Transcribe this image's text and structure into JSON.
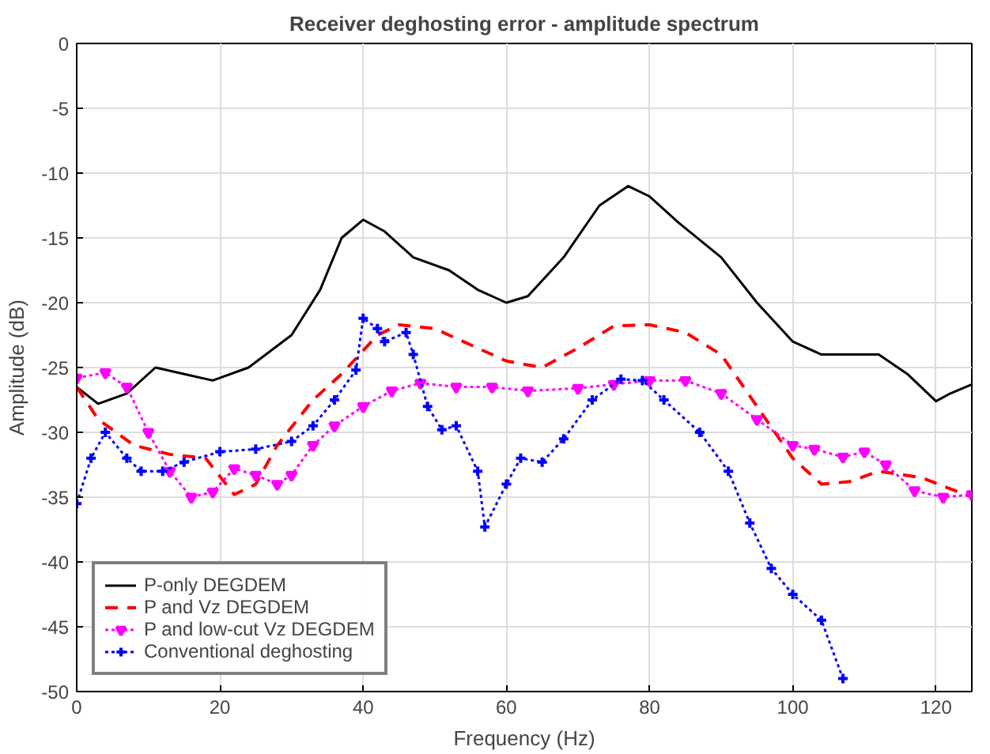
{
  "chart_data": {
    "type": "line",
    "title": "Receiver deghosting error - amplitude spectrum",
    "xlabel": "Frequency (Hz)",
    "ylabel": "Amplitude (dB)",
    "xlim": [
      0,
      125
    ],
    "ylim": [
      -50,
      0
    ],
    "xticks": [
      0,
      20,
      40,
      60,
      80,
      100,
      120
    ],
    "yticks": [
      -50,
      -45,
      -40,
      -35,
      -30,
      -25,
      -20,
      -15,
      -10,
      -5,
      0
    ],
    "grid": true,
    "legend": "bottom left",
    "series": [
      {
        "name": "P-only DEGDEM",
        "color": "#000000",
        "line_style": "solid",
        "marker": "none",
        "x": [
          0,
          3,
          7,
          11,
          15,
          19,
          24,
          30,
          34,
          37,
          40,
          43,
          47,
          52,
          56,
          60,
          63,
          68,
          73,
          77,
          80,
          84,
          90,
          95,
          100,
          104,
          108,
          112,
          116,
          120,
          122,
          125
        ],
        "values": [
          -26.5,
          -27.8,
          -27,
          -25,
          -25.5,
          -26,
          -25,
          -22.5,
          -19,
          -15,
          -13.6,
          -14.5,
          -16.5,
          -17.5,
          -19,
          -20,
          -19.5,
          -16.5,
          -12.5,
          -11,
          -11.8,
          -13.8,
          -16.5,
          -20,
          -23,
          -24,
          -24,
          -24,
          -25.5,
          -27.6,
          -27,
          -26.3
        ]
      },
      {
        "name": "P and Vz DEGDEM",
        "color": "#ff0000",
        "line_style": "dashed",
        "marker": "none",
        "x": [
          0,
          3,
          8,
          13,
          18,
          22,
          25,
          28,
          33,
          37,
          42,
          45,
          50,
          56,
          60,
          65,
          70,
          75,
          80,
          85,
          90,
          95,
          100,
          104,
          108,
          112,
          118,
          125
        ],
        "values": [
          -26.5,
          -29,
          -31,
          -31.7,
          -32,
          -34.8,
          -34,
          -31,
          -27.5,
          -25.5,
          -22.5,
          -21.7,
          -22,
          -23.5,
          -24.5,
          -25,
          -23.5,
          -21.8,
          -21.7,
          -22.3,
          -24,
          -28,
          -32,
          -34,
          -33.8,
          -33,
          -33.5,
          -35
        ]
      },
      {
        "name": "P and low-cut Vz DEGDEM",
        "color": "#ff00ff",
        "line_style": "dotted",
        "marker": "triangle",
        "x": [
          0,
          4,
          7,
          10,
          13,
          16,
          19,
          22,
          25,
          28,
          30,
          33,
          36,
          40,
          44,
          48,
          53,
          58,
          63,
          70,
          75,
          80,
          85,
          90,
          95,
          100,
          103,
          107,
          110,
          113,
          117,
          121,
          125
        ],
        "values": [
          -25.8,
          -25.4,
          -26.5,
          -30,
          -33,
          -35,
          -34.6,
          -32.8,
          -33.3,
          -34,
          -33.3,
          -31,
          -29.5,
          -28,
          -26.8,
          -26.2,
          -26.5,
          -26.5,
          -26.8,
          -26.6,
          -26.3,
          -26,
          -26,
          -27,
          -29,
          -31,
          -31.3,
          -31.9,
          -31.5,
          -32.5,
          -34.5,
          -35,
          -34.8
        ]
      },
      {
        "name": "Conventional deghosting",
        "color": "#0000ff",
        "line_style": "dotted",
        "marker": "cross",
        "x": [
          0,
          2,
          4,
          7,
          9,
          12,
          15,
          20,
          25,
          30,
          33,
          36,
          39,
          40,
          42,
          43,
          46,
          47,
          49,
          51,
          53,
          56,
          57,
          60,
          62,
          65,
          68,
          72,
          76,
          79,
          82,
          87,
          91,
          94,
          97,
          100,
          104,
          107
        ],
        "values": [
          -35.5,
          -32,
          -30,
          -32,
          -33,
          -33,
          -32.3,
          -31.5,
          -31.3,
          -30.7,
          -29.5,
          -27.5,
          -25.2,
          -21.2,
          -22,
          -23,
          -22.3,
          -24,
          -28,
          -29.8,
          -29.5,
          -33,
          -37.3,
          -34,
          -32,
          -32.3,
          -30.5,
          -27.5,
          -25.9,
          -26,
          -27.5,
          -30,
          -33,
          -37,
          -40.5,
          -42.5,
          -44.5,
          -49
        ]
      }
    ]
  }
}
